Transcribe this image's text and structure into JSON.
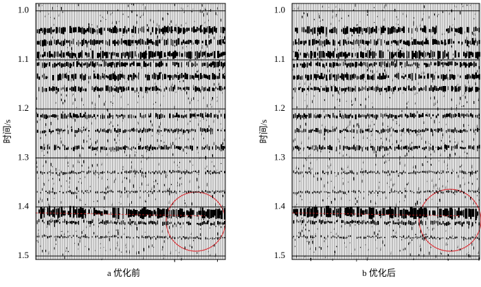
{
  "y_axis": {
    "label": "时间/s",
    "ylim": [
      0.985,
      1.507
    ],
    "ticks": [
      {
        "value": 1.0,
        "label": "1.0"
      },
      {
        "value": 1.1,
        "label": "1.1"
      },
      {
        "value": 1.2,
        "label": "1.2"
      },
      {
        "value": 1.3,
        "label": "1.3"
      },
      {
        "value": 1.4,
        "label": "1.4"
      },
      {
        "value": 1.5,
        "label": "1.5"
      }
    ]
  },
  "panels": [
    {
      "caption": "a 优化前"
    },
    {
      "caption": "b 优化后"
    }
  ]
}
